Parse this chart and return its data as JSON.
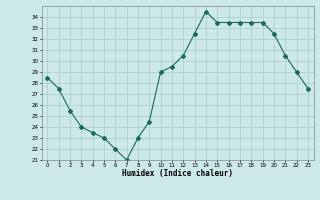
{
  "x": [
    0,
    1,
    2,
    3,
    4,
    5,
    6,
    7,
    8,
    9,
    10,
    11,
    12,
    13,
    14,
    15,
    16,
    17,
    18,
    19,
    20,
    21,
    22,
    23
  ],
  "y": [
    28.5,
    27.5,
    25.5,
    24.0,
    23.5,
    23.0,
    22.0,
    21.0,
    23.0,
    24.5,
    29.0,
    29.5,
    30.5,
    32.5,
    34.5,
    33.5,
    33.5,
    33.5,
    33.5,
    33.5,
    32.5,
    30.5,
    29.0,
    27.5
  ],
  "line_color": "#1a6b5a",
  "marker": "D",
  "marker_size": 2,
  "bg_color": "#cce8e8",
  "grid_color": "#aacccc",
  "xlabel": "Humidex (Indice chaleur)",
  "ylim": [
    21,
    35
  ],
  "xlim": [
    -0.5,
    23.5
  ],
  "yticks": [
    21,
    22,
    23,
    24,
    25,
    26,
    27,
    28,
    29,
    30,
    31,
    32,
    33,
    34
  ],
  "xticks": [
    0,
    1,
    2,
    3,
    4,
    5,
    6,
    7,
    8,
    9,
    10,
    11,
    12,
    13,
    14,
    15,
    16,
    17,
    18,
    19,
    20,
    21,
    22,
    23
  ]
}
